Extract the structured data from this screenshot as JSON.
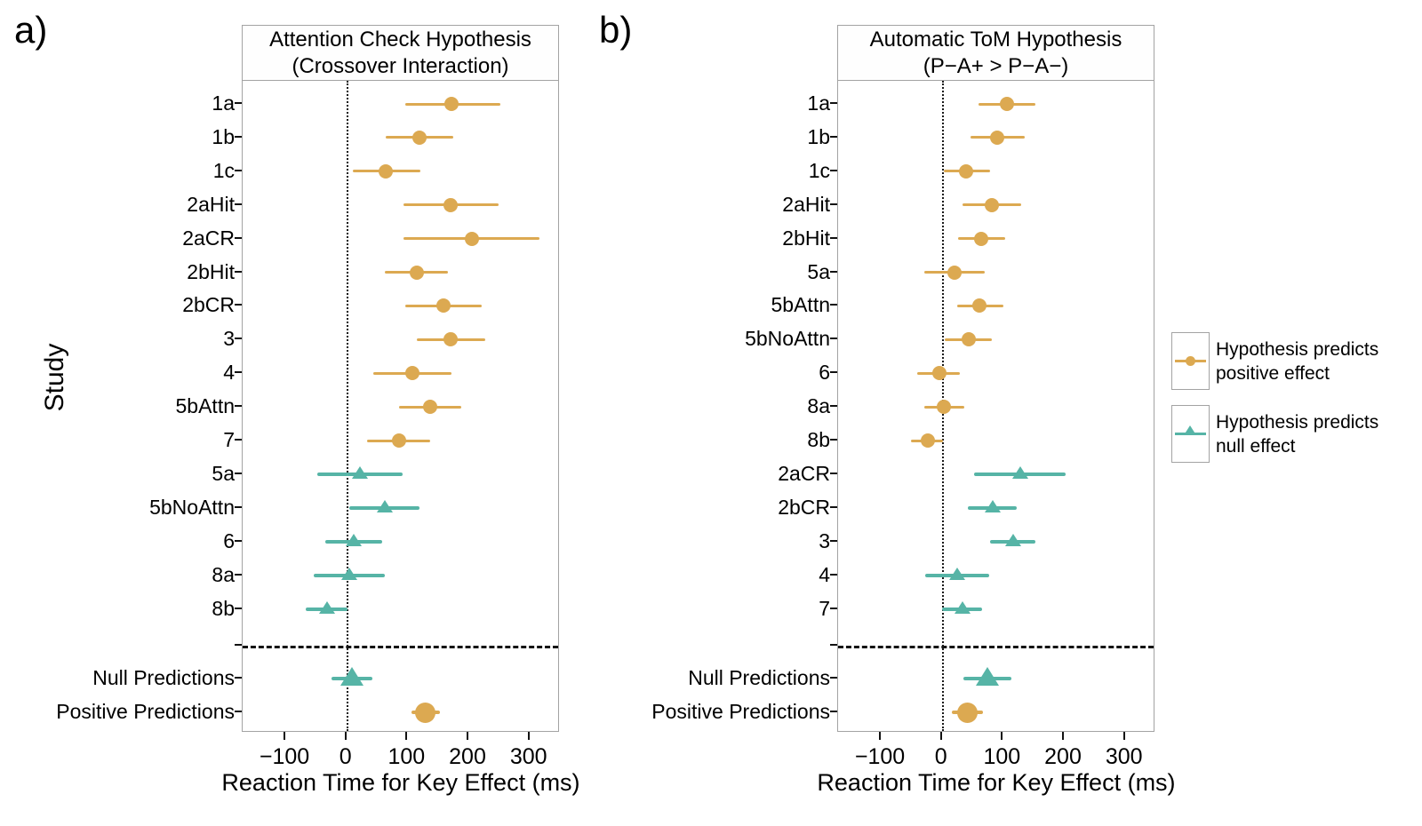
{
  "figure": {
    "panel_letters": [
      "a)",
      "b)"
    ],
    "y_axis_title": "Study"
  },
  "colors": {
    "positive": "#DCA951",
    "null": "#56B4A6",
    "panel_border": "#A3A3A3",
    "reference_line": "#1A1A1A",
    "text": "#000000"
  },
  "legend": {
    "items": [
      {
        "group": "positive",
        "marker": "circle",
        "line1": "Hypothesis predicts",
        "line2": "positive effect"
      },
      {
        "group": "null",
        "marker": "triangle",
        "line1": "Hypothesis predicts",
        "line2": "null effect"
      }
    ]
  },
  "chart_data": [
    {
      "type": "scatter",
      "panel": "a",
      "title_line1": "Attention Check Hypothesis",
      "title_line2": "(Crossover Interaction)",
      "xlabel": "Reaction Time for Key Effect (ms)",
      "ylabel": "Study",
      "xlim": [
        -170,
        350
      ],
      "xticks": [
        -100,
        0,
        100,
        200,
        300
      ],
      "xtick_labels": [
        "−100",
        "0",
        "100",
        "200",
        "300"
      ],
      "zero_line": 0,
      "legend_position": "right",
      "grid": false,
      "rows": [
        {
          "label": "1a",
          "group": "positive",
          "marker": "circle",
          "value": 173,
          "ci": [
            97,
            252
          ]
        },
        {
          "label": "1b",
          "group": "positive",
          "marker": "circle",
          "value": 120,
          "ci": [
            65,
            175
          ]
        },
        {
          "label": "1c",
          "group": "positive",
          "marker": "circle",
          "value": 65,
          "ci": [
            10,
            122
          ]
        },
        {
          "label": "2aHit",
          "group": "positive",
          "marker": "circle",
          "value": 171,
          "ci": [
            93,
            249
          ]
        },
        {
          "label": "2aCR",
          "group": "positive",
          "marker": "circle",
          "value": 206,
          "ci": [
            93,
            317
          ]
        },
        {
          "label": "2bHit",
          "group": "positive",
          "marker": "circle",
          "value": 115,
          "ci": [
            63,
            167
          ]
        },
        {
          "label": "2bCR",
          "group": "positive",
          "marker": "circle",
          "value": 159,
          "ci": [
            97,
            222
          ]
        },
        {
          "label": "3",
          "group": "positive",
          "marker": "circle",
          "value": 171,
          "ci": [
            116,
            228
          ]
        },
        {
          "label": "4",
          "group": "positive",
          "marker": "circle",
          "value": 108,
          "ci": [
            44,
            172
          ]
        },
        {
          "label": "5bAttn",
          "group": "positive",
          "marker": "circle",
          "value": 138,
          "ci": [
            87,
            189
          ]
        },
        {
          "label": "7",
          "group": "positive",
          "marker": "circle",
          "value": 86,
          "ci": [
            34,
            138
          ]
        },
        {
          "label": "5a",
          "group": "null",
          "marker": "triangle",
          "value": 22,
          "ci": [
            -48,
            92
          ]
        },
        {
          "label": "5bNoAttn",
          "group": "null",
          "marker": "triangle",
          "value": 63,
          "ci": [
            5,
            120
          ]
        },
        {
          "label": "6",
          "group": "null",
          "marker": "triangle",
          "value": 12,
          "ci": [
            -34,
            59
          ]
        },
        {
          "label": "8a",
          "group": "null",
          "marker": "triangle",
          "value": 5,
          "ci": [
            -54,
            63
          ]
        },
        {
          "label": "8b",
          "group": "null",
          "marker": "triangle",
          "value": -32,
          "ci": [
            -67,
            2
          ]
        }
      ],
      "summary_rows": [
        {
          "label": "Null Predictions",
          "group": "null",
          "marker": "triangle",
          "value": 9,
          "ci": [
            -24,
            42
          ],
          "large": true
        },
        {
          "label": "Positive Predictions",
          "group": "positive",
          "marker": "circle",
          "value": 130,
          "ci": [
            107,
            154
          ],
          "large": true
        }
      ]
    },
    {
      "type": "scatter",
      "panel": "b",
      "title_line1": "Automatic ToM Hypothesis",
      "title_line2": "(P−A+ > P−A−)",
      "xlabel": "Reaction Time for Key Effect (ms)",
      "ylabel": "",
      "xlim": [
        -170,
        350
      ],
      "xticks": [
        -100,
        0,
        100,
        200,
        300
      ],
      "xtick_labels": [
        "−100",
        "0",
        "100",
        "200",
        "300"
      ],
      "zero_line": 0,
      "legend_position": "right",
      "grid": false,
      "rows": [
        {
          "label": "1a",
          "group": "positive",
          "marker": "circle",
          "value": 107,
          "ci": [
            60,
            154
          ]
        },
        {
          "label": "1b",
          "group": "positive",
          "marker": "circle",
          "value": 90,
          "ci": [
            47,
            136
          ]
        },
        {
          "label": "1c",
          "group": "positive",
          "marker": "circle",
          "value": 40,
          "ci": [
            3,
            79
          ]
        },
        {
          "label": "2aHit",
          "group": "positive",
          "marker": "circle",
          "value": 82,
          "ci": [
            34,
            130
          ]
        },
        {
          "label": "2bHit",
          "group": "positive",
          "marker": "circle",
          "value": 65,
          "ci": [
            27,
            104
          ]
        },
        {
          "label": "5a",
          "group": "positive",
          "marker": "circle",
          "value": 21,
          "ci": [
            -28,
            70
          ]
        },
        {
          "label": "5bAttn",
          "group": "positive",
          "marker": "circle",
          "value": 62,
          "ci": [
            25,
            101
          ]
        },
        {
          "label": "5bNoAttn",
          "group": "positive",
          "marker": "circle",
          "value": 44,
          "ci": [
            5,
            82
          ]
        },
        {
          "label": "6",
          "group": "positive",
          "marker": "circle",
          "value": -4,
          "ci": [
            -40,
            30
          ]
        },
        {
          "label": "8a",
          "group": "positive",
          "marker": "circle",
          "value": 4,
          "ci": [
            -28,
            37
          ]
        },
        {
          "label": "8b",
          "group": "positive",
          "marker": "circle",
          "value": -23,
          "ci": [
            -50,
            2
          ]
        },
        {
          "label": "2aCR",
          "group": "null",
          "marker": "triangle",
          "value": 129,
          "ci": [
            53,
            203
          ]
        },
        {
          "label": "2bCR",
          "group": "null",
          "marker": "triangle",
          "value": 83,
          "ci": [
            42,
            123
          ]
        },
        {
          "label": "3",
          "group": "null",
          "marker": "triangle",
          "value": 117,
          "ci": [
            79,
            154
          ]
        },
        {
          "label": "4",
          "group": "null",
          "marker": "triangle",
          "value": 25,
          "ci": [
            -27,
            77
          ]
        },
        {
          "label": "7",
          "group": "null",
          "marker": "triangle",
          "value": 34,
          "ci": [
            0,
            66
          ]
        }
      ],
      "summary_rows": [
        {
          "label": "Null Predictions",
          "group": "null",
          "marker": "triangle",
          "value": 74,
          "ci": [
            35,
            114
          ],
          "large": true
        },
        {
          "label": "Positive Predictions",
          "group": "positive",
          "marker": "circle",
          "value": 42,
          "ci": [
            16,
            68
          ],
          "large": true
        }
      ]
    }
  ]
}
